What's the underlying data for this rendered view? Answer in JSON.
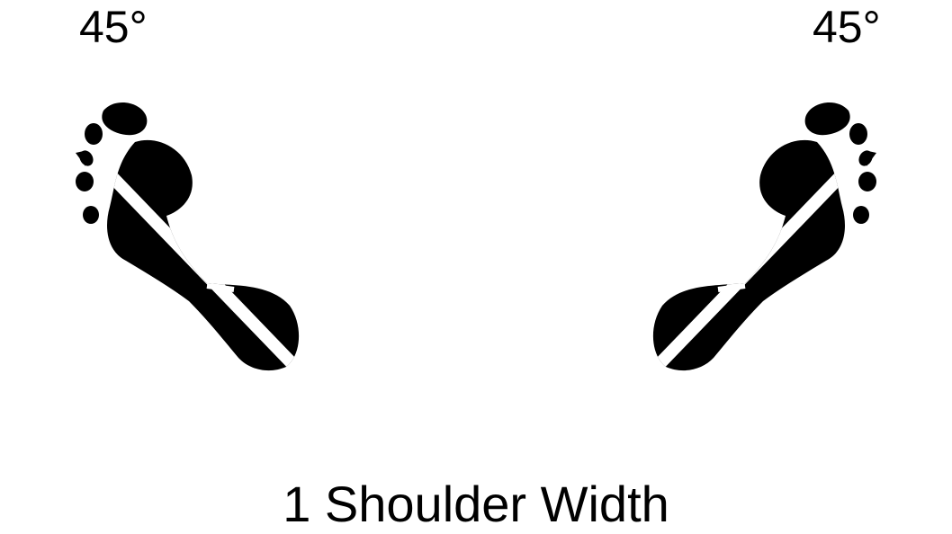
{
  "labels": {
    "left_angle": "45°",
    "right_angle": "45°",
    "caption": "1 Shoulder Width"
  },
  "icons": {
    "left_foot": "left-footprint-icon",
    "right_foot": "right-footprint-icon"
  },
  "colors": {
    "ink": "#000000",
    "background": "#ffffff"
  }
}
